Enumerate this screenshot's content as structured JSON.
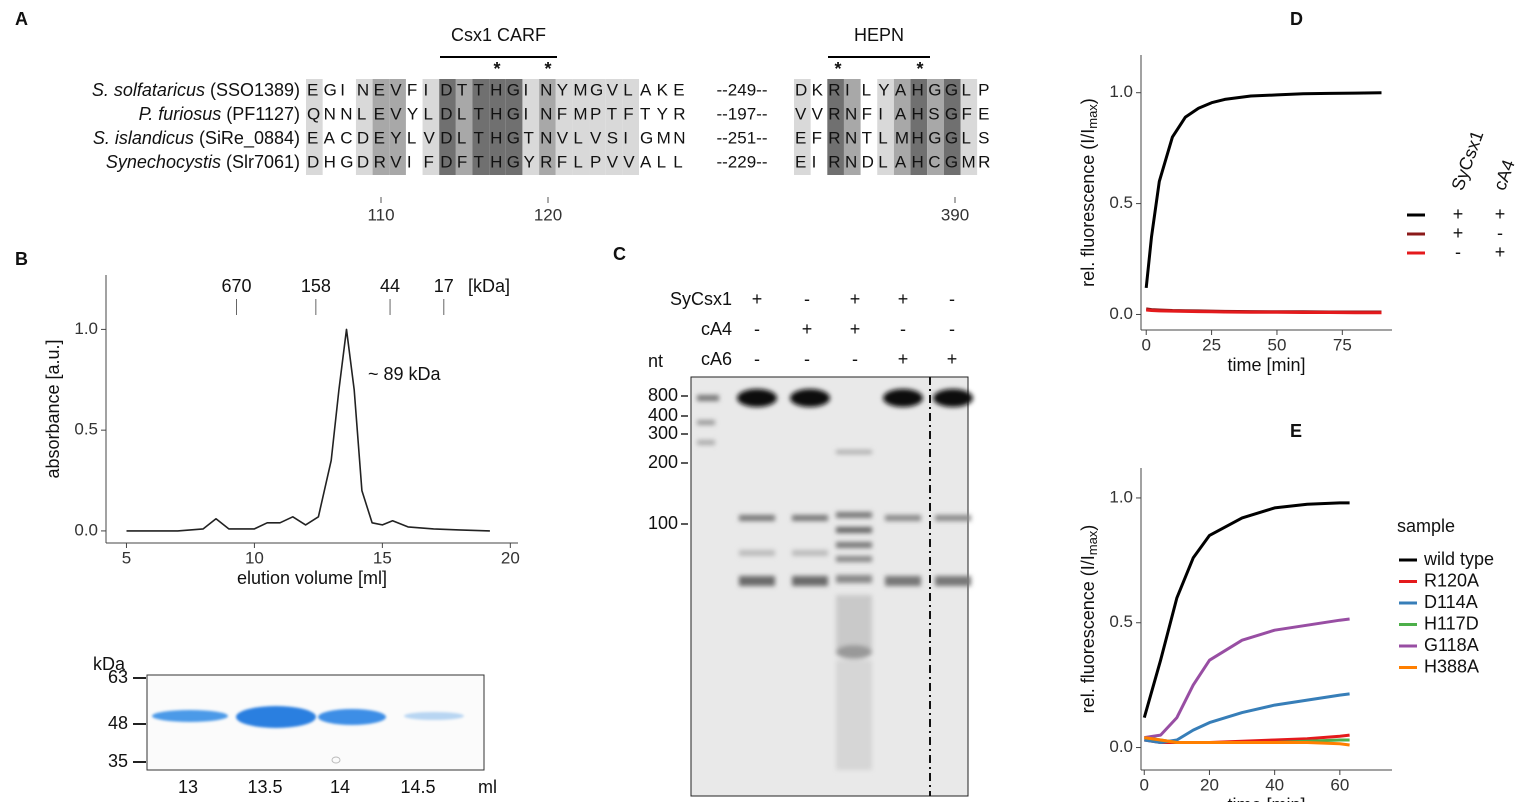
{
  "panel_labels": [
    "A",
    "B",
    "C",
    "D",
    "E"
  ],
  "alignment": {
    "domains": [
      "Csx1 CARF",
      "HEPN"
    ],
    "rows": [
      {
        "species": "S. solfataricus",
        "id": "(SSO1389)",
        "left": "EGINEVFIDTTHGINYMGVLAKE",
        "gap": "--249--",
        "right": "DKRILYAHGGLP"
      },
      {
        "species": "P. furiosus",
        "id": "(PF1127)",
        "left": "QNNLEVYLDLTHGINFMPTFTYR",
        "gap": "--197--",
        "right": "VVRNFIAHSGFE"
      },
      {
        "species": "S. islandicus",
        "id": "(SiRe_0884)",
        "left": "EACDEYLVDLTHGTNVLVSIGMN",
        "gap": "--251--",
        "right": "EFRNTLMHGGLS"
      },
      {
        "species": "Synechocystis",
        "id": "(Slr7061)",
        "left": "DHGDRVIFDFTHGYRFLPVVALL",
        "gap": "--229--",
        "right": "EIRNDLAHCGMR"
      }
    ],
    "positions": [
      "110",
      "120",
      "390"
    ]
  },
  "gel_b": {
    "unit": "kDa",
    "markers": [
      "63",
      "48",
      "35"
    ],
    "lanes": [
      "13",
      "13.5",
      "14",
      "14.5"
    ],
    "lane_unit": "ml"
  },
  "gel_c": {
    "rows": [
      {
        "label": "SyCsx1",
        "marks": [
          "+",
          "-",
          "+",
          "+",
          "-"
        ]
      },
      {
        "label": "cA4",
        "marks": [
          "-",
          "+",
          "+",
          "-",
          "-"
        ]
      },
      {
        "label": "cA6",
        "marks": [
          "-",
          "-",
          "-",
          "+",
          "+"
        ]
      }
    ],
    "ladder_unit": "nt",
    "ladder": [
      "800",
      "400",
      "300",
      "200",
      "100"
    ]
  },
  "chart_data": [
    {
      "type": "line",
      "xlabel": "elution volume [ml]",
      "ylabel": "absorbance [a.u.]",
      "annotation": "~ 89 kDa",
      "markers": {
        "labels": [
          "670",
          "158",
          "44",
          "17"
        ],
        "x": [
          9.3,
          12.4,
          15.3,
          17.4
        ],
        "unit": "[kDa]"
      },
      "x": [
        5,
        7,
        8,
        8.5,
        9,
        10,
        10.5,
        11,
        11.5,
        12,
        12.5,
        13,
        13.3,
        13.6,
        13.9,
        14.2,
        14.6,
        15,
        15.4,
        16,
        17,
        18,
        19.2
      ],
      "series": [
        {
          "color": "#222222",
          "values": [
            0,
            0,
            0.01,
            0.06,
            0.01,
            0.01,
            0.04,
            0.04,
            0.07,
            0.03,
            0.07,
            0.35,
            0.7,
            1.0,
            0.7,
            0.2,
            0.04,
            0.03,
            0.05,
            0.02,
            0.01,
            0.005,
            0
          ]
        }
      ],
      "xlim": [
        4.2,
        20.3
      ],
      "ylim": [
        -0.06,
        1.27
      ],
      "xticks": [
        5,
        10,
        15,
        20
      ],
      "yticks": [
        {
          "value": 0,
          "label": "0.0"
        },
        {
          "value": 0.5,
          "label": "0.5"
        },
        {
          "value": 1,
          "label": "1.0"
        }
      ]
    },
    {
      "type": "line",
      "xlabel": "time [min]",
      "ylabel": [
        "rel. fluorescence (I/I",
        "max",
        ")"
      ],
      "legend_headers": [
        "SyCsx1",
        "cA4"
      ],
      "x": [
        0,
        2,
        5,
        10,
        15,
        20,
        25,
        30,
        40,
        50,
        60,
        70,
        80,
        90
      ],
      "series": [
        {
          "color": "#000000",
          "conditions": [
            "+",
            "+"
          ],
          "values": [
            0.12,
            0.35,
            0.6,
            0.8,
            0.89,
            0.93,
            0.955,
            0.97,
            0.985,
            0.99,
            0.995,
            0.997,
            0.998,
            1.0
          ]
        },
        {
          "color": "#8b1a1a",
          "conditions": [
            "+",
            "-"
          ],
          "values": [
            0.025,
            0.022,
            0.02,
            0.018,
            0.017,
            0.016,
            0.015,
            0.014,
            0.013,
            0.012,
            0.012,
            0.011,
            0.011,
            0.011
          ]
        },
        {
          "color": "#e41a1c",
          "conditions": [
            "-",
            "+"
          ],
          "values": [
            0.02,
            0.018,
            0.016,
            0.015,
            0.014,
            0.013,
            0.012,
            0.011,
            0.01,
            0.01,
            0.009,
            0.009,
            0.008,
            0.008
          ]
        }
      ],
      "xlim": [
        -2,
        94
      ],
      "ylim": [
        -0.07,
        1.17
      ],
      "xticks": [
        0,
        25,
        50,
        75
      ],
      "yticks": [
        {
          "value": 0,
          "label": "0.0"
        },
        {
          "value": 0.5,
          "label": "0.5"
        },
        {
          "value": 1,
          "label": "1.0"
        }
      ]
    },
    {
      "type": "line",
      "xlabel": "time [min]",
      "ylabel": [
        "rel. fluorescence (I/I",
        "max",
        ")"
      ],
      "legend_title": "sample",
      "x": [
        0,
        5,
        10,
        15,
        20,
        30,
        40,
        50,
        60,
        63
      ],
      "series": [
        {
          "name": "wild type",
          "color": "#000000",
          "values": [
            0.12,
            0.35,
            0.6,
            0.76,
            0.85,
            0.92,
            0.96,
            0.975,
            0.98,
            0.98
          ]
        },
        {
          "name": "R120A",
          "color": "#e41a1c",
          "values": [
            0.03,
            0.02,
            0.02,
            0.02,
            0.02,
            0.025,
            0.03,
            0.035,
            0.045,
            0.05
          ]
        },
        {
          "name": "D114A",
          "color": "#377eb8",
          "values": [
            0.03,
            0.02,
            0.03,
            0.07,
            0.1,
            0.14,
            0.17,
            0.19,
            0.21,
            0.215
          ]
        },
        {
          "name": "H117D",
          "color": "#4daf4a",
          "values": [
            0.04,
            0.03,
            0.02,
            0.02,
            0.02,
            0.02,
            0.02,
            0.025,
            0.03,
            0.03
          ]
        },
        {
          "name": "G118A",
          "color": "#984ea3",
          "values": [
            0.04,
            0.05,
            0.12,
            0.25,
            0.35,
            0.43,
            0.47,
            0.49,
            0.51,
            0.515
          ]
        },
        {
          "name": "H388A",
          "color": "#ff7f00",
          "values": [
            0.04,
            0.03,
            0.02,
            0.02,
            0.02,
            0.02,
            0.02,
            0.02,
            0.015,
            0.01
          ]
        }
      ],
      "xlim": [
        -1,
        76
      ],
      "ylim": [
        -0.09,
        1.12
      ],
      "xticks": [
        0,
        20,
        40,
        60
      ],
      "yticks": [
        {
          "value": 0,
          "label": "0.0"
        },
        {
          "value": 0.5,
          "label": "0.5"
        },
        {
          "value": 1,
          "label": "1.0"
        }
      ]
    }
  ]
}
